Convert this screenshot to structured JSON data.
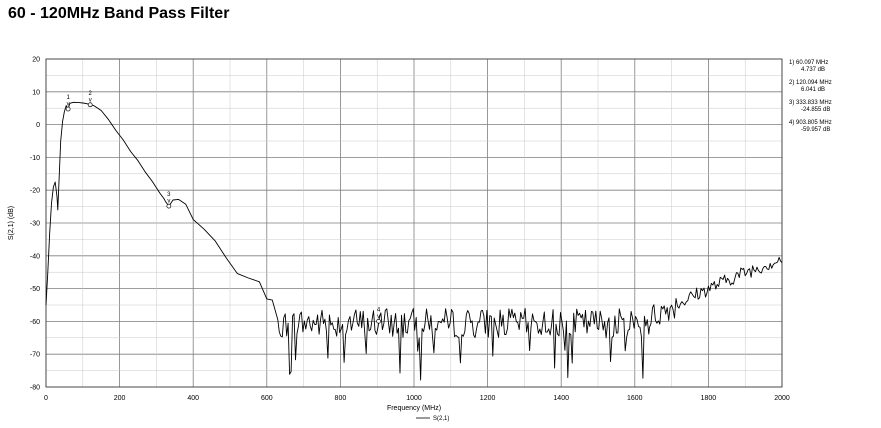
{
  "title": "60 - 120MHz Band Pass Filter",
  "chart_data": {
    "type": "line",
    "xlabel": "Frequency (MHz)",
    "ylabel": "S(2,1) (dB)",
    "xlim": [
      0,
      2000
    ],
    "ylim": [
      -80,
      20
    ],
    "x_ticks": [
      0,
      200,
      400,
      600,
      800,
      1000,
      1200,
      1400,
      1600,
      1800,
      2000
    ],
    "y_ticks": [
      20,
      10,
      0,
      -10,
      -20,
      -30,
      -40,
      -50,
      -60,
      -70,
      -80
    ],
    "grid": true,
    "legend": {
      "position": "bottom-center",
      "entries": [
        "S(2,1)"
      ]
    },
    "series": [
      {
        "name": "S(2,1)",
        "color": "#000000",
        "x": [
          0,
          5,
          10,
          15,
          20,
          25,
          30,
          32,
          35,
          40,
          45,
          50,
          55,
          60.097,
          65,
          75,
          90,
          100,
          110,
          120.094,
          130,
          150,
          170,
          190,
          210,
          230,
          250,
          270,
          290,
          310,
          320,
          325,
          333.833,
          345,
          360,
          380,
          400,
          430,
          460,
          490,
          520,
          550,
          580,
          600,
          615,
          630
        ],
        "values": [
          -55,
          -45,
          -33,
          -24,
          -19,
          -17.5,
          -22,
          -26,
          -18,
          -5,
          1,
          4,
          5.8,
          4.737,
          6.5,
          6.8,
          6.7,
          6.6,
          6.4,
          6.041,
          5.8,
          4.3,
          1.5,
          -1.8,
          -4.7,
          -8.2,
          -11,
          -14.5,
          -17.5,
          -21,
          -22.5,
          -23.5,
          -24.855,
          -23,
          -22.8,
          -24.5,
          -28.5,
          -32,
          -36.5,
          -41,
          -45.5,
          -47.5,
          -50,
          -51,
          -56,
          -58
        ]
      }
    ],
    "noise_floor": {
      "range": [
        630,
        1640
      ],
      "mean": -60.5,
      "spread": 4.5,
      "spikes_to": -78
    },
    "recovery": {
      "x": [
        1640,
        1700,
        1800,
        1900,
        2000
      ],
      "values": [
        -59,
        -55.5,
        -50,
        -45,
        -41
      ]
    },
    "markers": [
      {
        "id": "1",
        "x": 60.097,
        "y": 4.737,
        "freq": "60.097 MHz",
        "level": "4.737 dB"
      },
      {
        "id": "2",
        "x": 120.094,
        "y": 6.041,
        "freq": "120.094 MHz",
        "level": "6.041 dB"
      },
      {
        "id": "3",
        "x": 333.833,
        "y": -24.855,
        "freq": "333.833 MHz",
        "level": "-24.855 dB"
      },
      {
        "id": "4",
        "x": 903.805,
        "y": -59.957,
        "freq": "903.805 MHz",
        "level": "-59.957 dB"
      }
    ]
  }
}
